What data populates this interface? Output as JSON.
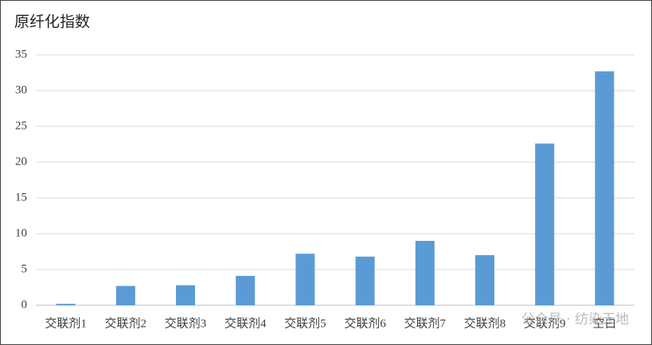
{
  "chart_data": {
    "type": "bar",
    "title": "原纤化指数",
    "categories": [
      "交联剂1",
      "交联剂2",
      "交联剂3",
      "交联剂4",
      "交联剂5",
      "交联剂6",
      "交联剂7",
      "交联剂8",
      "交联剂9",
      "空白"
    ],
    "values": [
      0.2,
      2.7,
      2.8,
      4.1,
      7.2,
      6.8,
      9.0,
      7.0,
      22.6,
      32.7
    ],
    "color": "#5b9bd5",
    "ylim": [
      0,
      35
    ],
    "yticks": [
      0,
      5,
      10,
      15,
      20,
      25,
      30,
      35
    ],
    "grid": true,
    "watermark": "公众号 · 纺染天地"
  }
}
